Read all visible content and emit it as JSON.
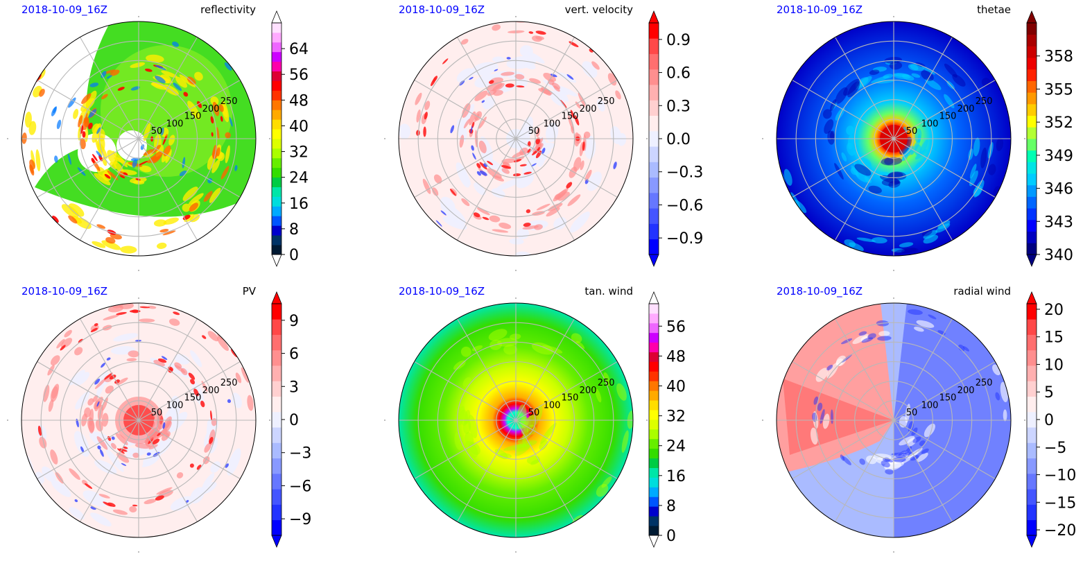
{
  "chart_data": [
    {
      "type": "heatmap",
      "title": "reflectivity",
      "subtitle": "2018-10-09_16Z",
      "projection": "polar",
      "ring_labels": [
        "50",
        "100",
        "150",
        "200",
        "250"
      ],
      "colorbar": {
        "ticks": [
          0,
          8,
          16,
          24,
          32,
          40,
          48,
          56,
          64
        ],
        "tick_labels": [
          "0",
          "8",
          "16",
          "24",
          "32",
          "40",
          "48",
          "56",
          "64"
        ],
        "range": [
          0,
          72
        ],
        "extend": "both",
        "colors": [
          "#001a33",
          "#003366",
          "#0000cc",
          "#0055ff",
          "#00aaff",
          "#00dddd",
          "#00e6a8",
          "#00cc44",
          "#33dd00",
          "#66ee00",
          "#aaff00",
          "#ddff00",
          "#ffff00",
          "#ffdd00",
          "#ffaa00",
          "#ff7700",
          "#ff3300",
          "#ff0000",
          "#dd0033",
          "#ff00aa",
          "#cc00ff",
          "#ee66ff",
          "#ffaaff",
          "#ffe0ff"
        ]
      }
    },
    {
      "type": "heatmap",
      "title": "vert. velocity",
      "subtitle": "2018-10-09_16Z",
      "projection": "polar",
      "ring_labels": [
        "50",
        "100",
        "150",
        "200",
        "250"
      ],
      "colorbar": {
        "ticks": [
          -0.9,
          -0.6,
          -0.3,
          0.0,
          0.3,
          0.6,
          0.9
        ],
        "tick_labels": [
          "−0.9",
          "−0.6",
          "−0.3",
          "0.0",
          "0.3",
          "0.6",
          "0.9"
        ],
        "range": [
          -1.05,
          1.05
        ],
        "extend": "both",
        "colors": [
          "#0000ff",
          "#2233ff",
          "#4455ff",
          "#6677ff",
          "#8899ff",
          "#aabbff",
          "#ccd5ff",
          "#eef0ff",
          "#ffeeee",
          "#ffd0d0",
          "#ffb0b0",
          "#ff8f8f",
          "#ff6f6f",
          "#ff4848",
          "#ff0000"
        ]
      }
    },
    {
      "type": "heatmap",
      "title": "thetae",
      "subtitle": "2018-10-09_16Z",
      "projection": "polar",
      "ring_labels": [
        "50",
        "100",
        "150",
        "200",
        "250"
      ],
      "colorbar": {
        "ticks": [
          340,
          343,
          346,
          349,
          352,
          355,
          358
        ],
        "tick_labels": [
          "340",
          "343",
          "346",
          "349",
          "352",
          "355",
          "358"
        ],
        "range": [
          340,
          361
        ],
        "extend": "both",
        "colors": [
          "#000080",
          "#0000c0",
          "#0000ff",
          "#0033ff",
          "#0066ff",
          "#0099ff",
          "#00ccff",
          "#00e5e5",
          "#00ffb3",
          "#66ff66",
          "#b3ff33",
          "#ffff00",
          "#ffcc00",
          "#ff9900",
          "#ff6600",
          "#ff2200",
          "#ee0000",
          "#cc0000",
          "#aa0000",
          "#800000"
        ]
      }
    },
    {
      "type": "heatmap",
      "title": "PV",
      "subtitle": "2018-10-09_16Z",
      "projection": "polar",
      "ring_labels": [
        "50",
        "100",
        "150",
        "200",
        "250"
      ],
      "colorbar": {
        "ticks": [
          -9,
          -6,
          -3,
          0,
          3,
          6,
          9
        ],
        "tick_labels": [
          "−9",
          "−6",
          "−3",
          "0",
          "3",
          "6",
          "9"
        ],
        "range": [
          -10.5,
          10.5
        ],
        "extend": "both",
        "colors": [
          "#0000ff",
          "#2233ff",
          "#4455ff",
          "#6677ff",
          "#8899ff",
          "#aabbff",
          "#ccd5ff",
          "#eef0ff",
          "#ffeeee",
          "#ffd0d0",
          "#ffb0b0",
          "#ff8f8f",
          "#ff6f6f",
          "#ff4848",
          "#ff0000"
        ]
      }
    },
    {
      "type": "heatmap",
      "title": "tan. wind",
      "subtitle": "2018-10-09_16Z",
      "projection": "polar",
      "ring_labels": [
        "50",
        "100",
        "150",
        "200",
        "250"
      ],
      "colorbar": {
        "ticks": [
          0,
          8,
          16,
          24,
          32,
          40,
          48,
          56
        ],
        "tick_labels": [
          "0",
          "8",
          "16",
          "24",
          "32",
          "40",
          "48",
          "56"
        ],
        "range": [
          0,
          62
        ],
        "extend": "both",
        "colors": [
          "#001a33",
          "#003366",
          "#0000cc",
          "#0055ff",
          "#00aaff",
          "#00dddd",
          "#00e6a8",
          "#00cc44",
          "#33dd00",
          "#66ee00",
          "#aaff00",
          "#ddff00",
          "#ffff00",
          "#ffdd00",
          "#ffaa00",
          "#ff7700",
          "#ff3300",
          "#ff0000",
          "#dd0033",
          "#ff00aa",
          "#cc00ff",
          "#ee66ff",
          "#ffaaff",
          "#ffe0ff"
        ]
      }
    },
    {
      "type": "heatmap",
      "title": "radial wind",
      "subtitle": "2018-10-09_16Z",
      "projection": "polar",
      "ring_labels": [
        "50",
        "100",
        "150",
        "200",
        "250"
      ],
      "colorbar": {
        "ticks": [
          -20,
          -15,
          -10,
          -5,
          0,
          5,
          10,
          15,
          20
        ],
        "tick_labels": [
          "−20",
          "−15",
          "−10",
          "−5",
          "0",
          "5",
          "10",
          "15",
          "20"
        ],
        "range": [
          -21,
          21
        ],
        "extend": "both",
        "colors": [
          "#0000ff",
          "#2233ff",
          "#4455ff",
          "#6677ff",
          "#8899ff",
          "#aabbff",
          "#ccd5ff",
          "#eef0ff",
          "#ffeeee",
          "#ffd0d0",
          "#ffb0b0",
          "#ff8f8f",
          "#ff6f6f",
          "#ff4848",
          "#ff0000"
        ]
      }
    }
  ]
}
